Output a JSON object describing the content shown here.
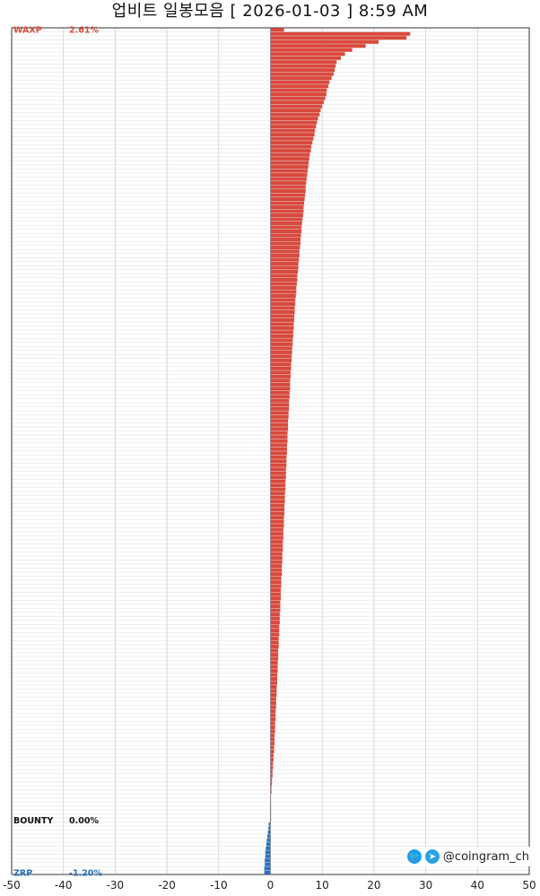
{
  "header": {
    "title": "업비트 일봉모음 [ 2026-01-03 ]  8:59 AM"
  },
  "footer": {
    "credit": "@coingram_ch",
    "twitter_icon": "twitter-icon",
    "telegram_icon": "telegram-icon"
  },
  "colors": {
    "up": "#d9493c",
    "zero": "#111111",
    "down": "#2a74c0",
    "grid": "#dcdcdc",
    "axis": "#333333"
  },
  "chart_data": {
    "type": "bar",
    "orientation": "horizontal",
    "xlim": [
      -50,
      50
    ],
    "xticks": [
      -50,
      -40,
      -30,
      -20,
      -10,
      0,
      10,
      20,
      30,
      40,
      50
    ],
    "grid": true,
    "rows": [
      {
        "name": "WAXP",
        "change": 2.61
      },
      {
        "name": "",
        "change": 27.0
      },
      {
        "name": "",
        "change": 26.3
      },
      {
        "name": "",
        "change": 20.9
      },
      {
        "name": "",
        "change": 18.4
      },
      {
        "name": "",
        "change": 15.8
      },
      {
        "name": "",
        "change": 14.4
      },
      {
        "name": "",
        "change": 13.6
      },
      {
        "name": "",
        "change": 12.8
      },
      {
        "name": "",
        "change": 12.6
      },
      {
        "name": "",
        "change": 12.4
      },
      {
        "name": "",
        "change": 12.2
      },
      {
        "name": "",
        "change": 11.8
      },
      {
        "name": "",
        "change": 11.4
      },
      {
        "name": "",
        "change": 11.2
      },
      {
        "name": "",
        "change": 10.9
      },
      {
        "name": "",
        "change": 10.8
      },
      {
        "name": "",
        "change": 10.6
      },
      {
        "name": "",
        "change": 10.3
      },
      {
        "name": "",
        "change": 10.0
      },
      {
        "name": "",
        "change": 9.7
      },
      {
        "name": "",
        "change": 9.5
      },
      {
        "name": "",
        "change": 9.2
      },
      {
        "name": "",
        "change": 9.0
      },
      {
        "name": "",
        "change": 8.8
      },
      {
        "name": "",
        "change": 8.6
      },
      {
        "name": "",
        "change": 8.5
      },
      {
        "name": "",
        "change": 8.3
      },
      {
        "name": "",
        "change": 8.1
      },
      {
        "name": "",
        "change": 7.9
      },
      {
        "name": "",
        "change": 7.8
      },
      {
        "name": "",
        "change": 7.6
      },
      {
        "name": "",
        "change": 7.5
      },
      {
        "name": "",
        "change": 7.4
      },
      {
        "name": "",
        "change": 7.3
      },
      {
        "name": "",
        "change": 7.2
      },
      {
        "name": "",
        "change": 7.1
      },
      {
        "name": "",
        "change": 7.0
      },
      {
        "name": "",
        "change": 6.9
      },
      {
        "name": "",
        "change": 6.8
      },
      {
        "name": "",
        "change": 6.8
      },
      {
        "name": "",
        "change": 6.7
      },
      {
        "name": "",
        "change": 6.6
      },
      {
        "name": "",
        "change": 6.5
      },
      {
        "name": "",
        "change": 6.4
      },
      {
        "name": "",
        "change": 6.4
      },
      {
        "name": "",
        "change": 6.3
      },
      {
        "name": "",
        "change": 6.2
      },
      {
        "name": "",
        "change": 6.1
      },
      {
        "name": "",
        "change": 6.0
      },
      {
        "name": "",
        "change": 6.0
      },
      {
        "name": "",
        "change": 5.9
      },
      {
        "name": "",
        "change": 5.8
      },
      {
        "name": "",
        "change": 5.8
      },
      {
        "name": "",
        "change": 5.7
      },
      {
        "name": "",
        "change": 5.6
      },
      {
        "name": "",
        "change": 5.6
      },
      {
        "name": "",
        "change": 5.5
      },
      {
        "name": "",
        "change": 5.4
      },
      {
        "name": "",
        "change": 5.4
      },
      {
        "name": "",
        "change": 5.3
      },
      {
        "name": "",
        "change": 5.2
      },
      {
        "name": "",
        "change": 5.2
      },
      {
        "name": "",
        "change": 5.1
      },
      {
        "name": "",
        "change": 5.0
      },
      {
        "name": "",
        "change": 5.0
      },
      {
        "name": "",
        "change": 4.9
      },
      {
        "name": "",
        "change": 4.8
      },
      {
        "name": "",
        "change": 4.8
      },
      {
        "name": "",
        "change": 4.7
      },
      {
        "name": "",
        "change": 4.7
      },
      {
        "name": "",
        "change": 4.6
      },
      {
        "name": "",
        "change": 4.6
      },
      {
        "name": "",
        "change": 4.5
      },
      {
        "name": "",
        "change": 4.5
      },
      {
        "name": "",
        "change": 4.4
      },
      {
        "name": "",
        "change": 4.4
      },
      {
        "name": "",
        "change": 4.3
      },
      {
        "name": "",
        "change": 4.3
      },
      {
        "name": "",
        "change": 4.2
      },
      {
        "name": "",
        "change": 4.2
      },
      {
        "name": "",
        "change": 4.1
      },
      {
        "name": "",
        "change": 4.1
      },
      {
        "name": "",
        "change": 4.0
      },
      {
        "name": "",
        "change": 4.0
      },
      {
        "name": "",
        "change": 3.9
      },
      {
        "name": "",
        "change": 3.9
      },
      {
        "name": "",
        "change": 3.8
      },
      {
        "name": "",
        "change": 3.8
      },
      {
        "name": "",
        "change": 3.8
      },
      {
        "name": "",
        "change": 3.7
      },
      {
        "name": "",
        "change": 3.7
      },
      {
        "name": "",
        "change": 3.6
      },
      {
        "name": "",
        "change": 3.6
      },
      {
        "name": "",
        "change": 3.6
      },
      {
        "name": "",
        "change": 3.5
      },
      {
        "name": "",
        "change": 3.5
      },
      {
        "name": "",
        "change": 3.4
      },
      {
        "name": "",
        "change": 3.4
      },
      {
        "name": "",
        "change": 3.4
      },
      {
        "name": "",
        "change": 3.3
      },
      {
        "name": "",
        "change": 3.3
      },
      {
        "name": "",
        "change": 3.3
      },
      {
        "name": "",
        "change": 3.2
      },
      {
        "name": "",
        "change": 3.2
      },
      {
        "name": "",
        "change": 3.2
      },
      {
        "name": "",
        "change": 3.1
      },
      {
        "name": "",
        "change": 3.1
      },
      {
        "name": "",
        "change": 3.1
      },
      {
        "name": "",
        "change": 3.0
      },
      {
        "name": "",
        "change": 3.0
      },
      {
        "name": "",
        "change": 3.0
      },
      {
        "name": "",
        "change": 2.9
      },
      {
        "name": "",
        "change": 2.9
      },
      {
        "name": "",
        "change": 2.9
      },
      {
        "name": "",
        "change": 2.8
      },
      {
        "name": "",
        "change": 2.8
      },
      {
        "name": "",
        "change": 2.8
      },
      {
        "name": "",
        "change": 2.7
      },
      {
        "name": "",
        "change": 2.7
      },
      {
        "name": "",
        "change": 2.7
      },
      {
        "name": "",
        "change": 2.6
      },
      {
        "name": "",
        "change": 2.6
      },
      {
        "name": "",
        "change": 2.6
      },
      {
        "name": "",
        "change": 2.5
      },
      {
        "name": "",
        "change": 2.5
      },
      {
        "name": "",
        "change": 2.5
      },
      {
        "name": "",
        "change": 2.4
      },
      {
        "name": "",
        "change": 2.4
      },
      {
        "name": "",
        "change": 2.4
      },
      {
        "name": "",
        "change": 2.3
      },
      {
        "name": "",
        "change": 2.3
      },
      {
        "name": "",
        "change": 2.3
      },
      {
        "name": "",
        "change": 2.2
      },
      {
        "name": "",
        "change": 2.2
      },
      {
        "name": "",
        "change": 2.2
      },
      {
        "name": "",
        "change": 2.1
      },
      {
        "name": "",
        "change": 2.1
      },
      {
        "name": "",
        "change": 2.1
      },
      {
        "name": "",
        "change": 2.0
      },
      {
        "name": "",
        "change": 2.0
      },
      {
        "name": "",
        "change": 2.0
      },
      {
        "name": "",
        "change": 1.9
      },
      {
        "name": "",
        "change": 1.9
      },
      {
        "name": "",
        "change": 1.9
      },
      {
        "name": "",
        "change": 1.8
      },
      {
        "name": "",
        "change": 1.8
      },
      {
        "name": "",
        "change": 1.8
      },
      {
        "name": "",
        "change": 1.7
      },
      {
        "name": "",
        "change": 1.7
      },
      {
        "name": "",
        "change": 1.7
      },
      {
        "name": "",
        "change": 1.6
      },
      {
        "name": "",
        "change": 1.6
      },
      {
        "name": "",
        "change": 1.6
      },
      {
        "name": "",
        "change": 1.5
      },
      {
        "name": "",
        "change": 1.5
      },
      {
        "name": "",
        "change": 1.5
      },
      {
        "name": "",
        "change": 1.4
      },
      {
        "name": "",
        "change": 1.4
      },
      {
        "name": "",
        "change": 1.4
      },
      {
        "name": "",
        "change": 1.3
      },
      {
        "name": "",
        "change": 1.3
      },
      {
        "name": "",
        "change": 1.3
      },
      {
        "name": "",
        "change": 1.2
      },
      {
        "name": "",
        "change": 1.2
      },
      {
        "name": "",
        "change": 1.2
      },
      {
        "name": "",
        "change": 1.1
      },
      {
        "name": "",
        "change": 1.1
      },
      {
        "name": "",
        "change": 1.1
      },
      {
        "name": "",
        "change": 1.0
      },
      {
        "name": "",
        "change": 1.0
      },
      {
        "name": "",
        "change": 1.0
      },
      {
        "name": "",
        "change": 0.9
      },
      {
        "name": "",
        "change": 0.9
      },
      {
        "name": "",
        "change": 0.9
      },
      {
        "name": "",
        "change": 0.8
      },
      {
        "name": "",
        "change": 0.8
      },
      {
        "name": "",
        "change": 0.8
      },
      {
        "name": "",
        "change": 0.7
      },
      {
        "name": "",
        "change": 0.7
      },
      {
        "name": "",
        "change": 0.6
      },
      {
        "name": "",
        "change": 0.6
      },
      {
        "name": "",
        "change": 0.5
      },
      {
        "name": "",
        "change": 0.5
      },
      {
        "name": "",
        "change": 0.4
      },
      {
        "name": "",
        "change": 0.4
      },
      {
        "name": "",
        "change": 0.3
      },
      {
        "name": "",
        "change": 0.3
      },
      {
        "name": "",
        "change": 0.2
      },
      {
        "name": "",
        "change": 0.2
      },
      {
        "name": "",
        "change": 0.1
      },
      {
        "name": "",
        "change": 0.1
      },
      {
        "name": "",
        "change": 0.0
      },
      {
        "name": "",
        "change": 0.0
      },
      {
        "name": "",
        "change": 0.0
      },
      {
        "name": "",
        "change": 0.0
      },
      {
        "name": "BOUNTY",
        "change": 0.0
      },
      {
        "name": "",
        "change": -0.34
      },
      {
        "name": "",
        "change": -0.4
      },
      {
        "name": "",
        "change": -0.5
      },
      {
        "name": "",
        "change": -0.6
      },
      {
        "name": "",
        "change": -0.7
      },
      {
        "name": "",
        "change": -0.8
      },
      {
        "name": "",
        "change": -0.9
      },
      {
        "name": "",
        "change": -1.0
      },
      {
        "name": "",
        "change": -1.0
      },
      {
        "name": "",
        "change": -1.1
      },
      {
        "name": "",
        "change": -1.1
      },
      {
        "name": "",
        "change": -1.2
      },
      {
        "name": "ZRP",
        "change": -1.2
      }
    ]
  }
}
